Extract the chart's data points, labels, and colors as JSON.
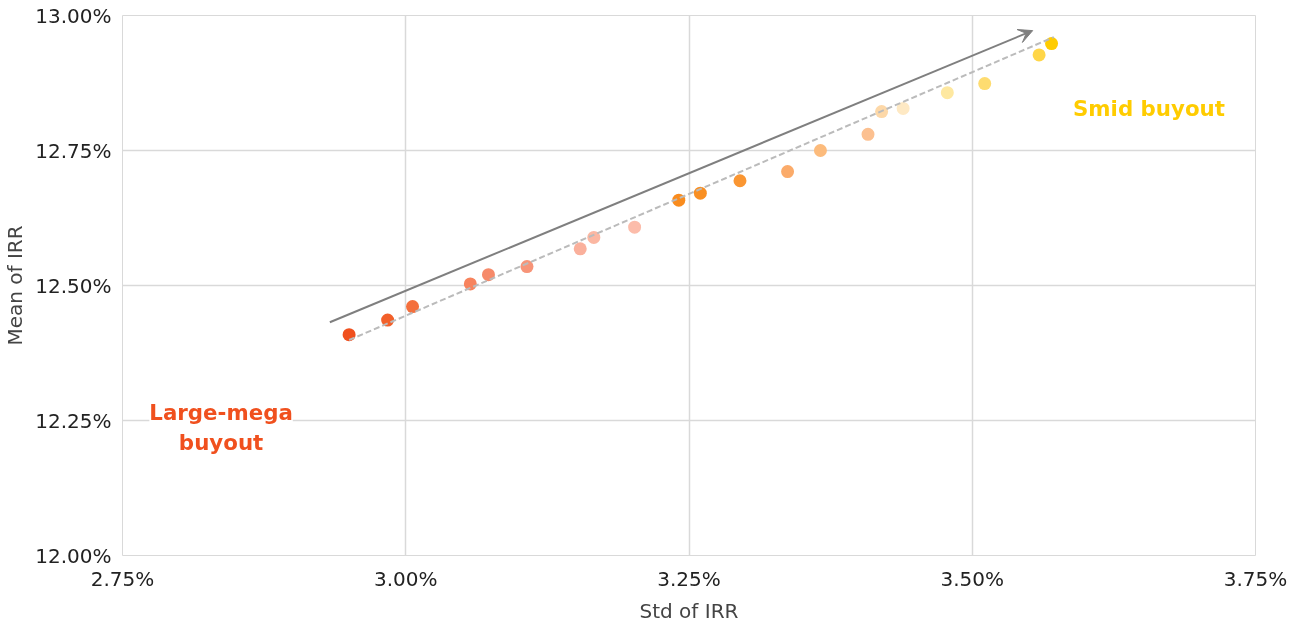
{
  "chart_data": {
    "type": "scatter",
    "xlabel": "Std of IRR",
    "ylabel": "Mean of IRR",
    "xlim": [
      2.75,
      3.75
    ],
    "ylim": [
      12.0,
      13.0
    ],
    "xticks": [
      {
        "value": 2.75,
        "label": "2.75%"
      },
      {
        "value": 3.0,
        "label": "3.00%"
      },
      {
        "value": 3.25,
        "label": "3.25%"
      },
      {
        "value": 3.5,
        "label": "3.50%"
      },
      {
        "value": 3.75,
        "label": "3.75%"
      }
    ],
    "yticks": [
      {
        "value": 12.0,
        "label": "12.00%"
      },
      {
        "value": 12.25,
        "label": "12.25%"
      },
      {
        "value": 12.5,
        "label": "12.50%"
      },
      {
        "value": 12.75,
        "label": "12.75%"
      },
      {
        "value": 13.0,
        "label": "13.00%"
      }
    ],
    "grid": true,
    "series": [
      {
        "marker": "circle",
        "x": [
          2.95,
          2.984,
          3.006,
          3.057,
          3.073,
          3.107,
          3.154,
          3.166,
          3.202,
          3.241,
          3.26,
          3.295,
          3.337,
          3.366,
          3.408,
          3.42,
          3.439,
          3.478,
          3.511,
          3.559,
          3.57
        ],
        "values": [
          12.409,
          12.436,
          12.461,
          12.503,
          12.52,
          12.535,
          12.568,
          12.589,
          12.608,
          12.658,
          12.671,
          12.694,
          12.711,
          12.75,
          12.78,
          12.822,
          12.828,
          12.857,
          12.874,
          12.927,
          12.948
        ],
        "colors": [
          "#f0501e",
          "#f2602a",
          "#f46f3c",
          "#f7835d",
          "#f68a6a",
          "#f79478",
          "#fab09c",
          "#fbb7a2",
          "#fcbcaa",
          "#f98c1e",
          "#f98f22",
          "#fa9632",
          "#fbab6a",
          "#fcbb7c",
          "#fcc090",
          "#fdd8a8",
          "#fee9c4",
          "#fee8a0",
          "#fedc70",
          "#ffd648",
          "#ffcc00"
        ]
      },
      {
        "type": "line",
        "x": [
          2.95,
          3.572
        ],
        "values": [
          12.399,
          12.96
        ],
        "color": "#bbbbbb",
        "line_style": "dashed"
      }
    ],
    "annotations": [
      "Large-mega buyout",
      "Smid buyout"
    ]
  }
}
